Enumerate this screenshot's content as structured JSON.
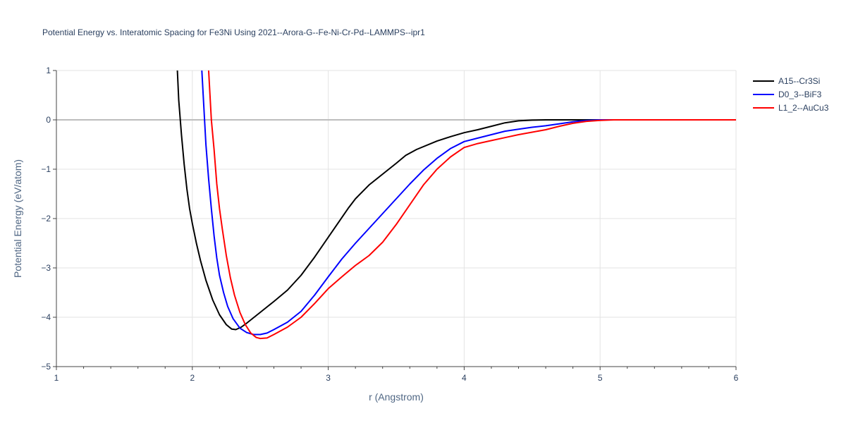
{
  "chart_data": {
    "type": "line",
    "title": "Potential Energy vs. Interatomic Spacing for Fe3Ni Using 2021--Arora-G--Fe-Ni-Cr-Pd--LAMMPS--ipr1",
    "xlabel": "r (Angstrom)",
    "ylabel": "Potential Energy (eV/atom)",
    "xlim": [
      1,
      6
    ],
    "ylim": [
      -5,
      1
    ],
    "xticks": [
      1,
      2,
      3,
      4,
      5,
      6
    ],
    "yticks": [
      -5,
      -4,
      -3,
      -2,
      -1,
      0,
      1
    ],
    "x_minor_step": 0.2,
    "grid": true,
    "zero_line": true,
    "legend_position": "top-right",
    "series": [
      {
        "name": "A15--Cr3Si",
        "color": "#000000",
        "points": [
          [
            1.89,
            1.0
          ],
          [
            1.9,
            0.4
          ],
          [
            1.92,
            -0.3
          ],
          [
            1.94,
            -0.9
          ],
          [
            1.96,
            -1.4
          ],
          [
            1.98,
            -1.8
          ],
          [
            2.0,
            -2.1
          ],
          [
            2.03,
            -2.5
          ],
          [
            2.06,
            -2.85
          ],
          [
            2.1,
            -3.25
          ],
          [
            2.15,
            -3.65
          ],
          [
            2.2,
            -3.95
          ],
          [
            2.25,
            -4.15
          ],
          [
            2.29,
            -4.24
          ],
          [
            2.32,
            -4.25
          ],
          [
            2.36,
            -4.2
          ],
          [
            2.4,
            -4.12
          ],
          [
            2.5,
            -3.9
          ],
          [
            2.6,
            -3.68
          ],
          [
            2.7,
            -3.45
          ],
          [
            2.8,
            -3.15
          ],
          [
            2.9,
            -2.78
          ],
          [
            3.0,
            -2.38
          ],
          [
            3.1,
            -1.98
          ],
          [
            3.15,
            -1.78
          ],
          [
            3.2,
            -1.6
          ],
          [
            3.3,
            -1.32
          ],
          [
            3.4,
            -1.1
          ],
          [
            3.5,
            -0.88
          ],
          [
            3.57,
            -0.72
          ],
          [
            3.65,
            -0.6
          ],
          [
            3.8,
            -0.43
          ],
          [
            3.9,
            -0.34
          ],
          [
            4.0,
            -0.26
          ],
          [
            4.1,
            -0.2
          ],
          [
            4.2,
            -0.13
          ],
          [
            4.3,
            -0.06
          ],
          [
            4.4,
            -0.02
          ],
          [
            4.5,
            -0.005
          ],
          [
            4.6,
            0.0
          ],
          [
            6.0,
            0.0
          ]
        ]
      },
      {
        "name": "D0_3--BiF3",
        "color": "#0000ff",
        "points": [
          [
            2.07,
            1.0
          ],
          [
            2.08,
            0.5
          ],
          [
            2.09,
            0.0
          ],
          [
            2.1,
            -0.5
          ],
          [
            2.12,
            -1.2
          ],
          [
            2.14,
            -1.8
          ],
          [
            2.16,
            -2.35
          ],
          [
            2.18,
            -2.8
          ],
          [
            2.2,
            -3.15
          ],
          [
            2.23,
            -3.5
          ],
          [
            2.26,
            -3.78
          ],
          [
            2.3,
            -4.03
          ],
          [
            2.35,
            -4.22
          ],
          [
            2.4,
            -4.31
          ],
          [
            2.45,
            -4.35
          ],
          [
            2.5,
            -4.35
          ],
          [
            2.55,
            -4.32
          ],
          [
            2.6,
            -4.25
          ],
          [
            2.7,
            -4.1
          ],
          [
            2.8,
            -3.88
          ],
          [
            2.9,
            -3.55
          ],
          [
            3.0,
            -3.18
          ],
          [
            3.1,
            -2.82
          ],
          [
            3.2,
            -2.5
          ],
          [
            3.3,
            -2.2
          ],
          [
            3.4,
            -1.9
          ],
          [
            3.5,
            -1.6
          ],
          [
            3.6,
            -1.3
          ],
          [
            3.7,
            -1.02
          ],
          [
            3.8,
            -0.78
          ],
          [
            3.9,
            -0.58
          ],
          [
            4.0,
            -0.44
          ],
          [
            4.1,
            -0.37
          ],
          [
            4.2,
            -0.3
          ],
          [
            4.3,
            -0.23
          ],
          [
            4.4,
            -0.19
          ],
          [
            4.5,
            -0.15
          ],
          [
            4.6,
            -0.12
          ],
          [
            4.7,
            -0.08
          ],
          [
            4.8,
            -0.04
          ],
          [
            4.9,
            -0.015
          ],
          [
            5.0,
            0.0
          ],
          [
            6.0,
            0.0
          ]
        ]
      },
      {
        "name": "L1_2--AuCu3",
        "color": "#ff0000",
        "points": [
          [
            2.12,
            1.0
          ],
          [
            2.13,
            0.5
          ],
          [
            2.14,
            0.0
          ],
          [
            2.16,
            -0.6
          ],
          [
            2.18,
            -1.3
          ],
          [
            2.2,
            -1.8
          ],
          [
            2.22,
            -2.2
          ],
          [
            2.25,
            -2.75
          ],
          [
            2.28,
            -3.2
          ],
          [
            2.31,
            -3.55
          ],
          [
            2.35,
            -3.9
          ],
          [
            2.39,
            -4.15
          ],
          [
            2.43,
            -4.32
          ],
          [
            2.47,
            -4.41
          ],
          [
            2.5,
            -4.43
          ],
          [
            2.55,
            -4.42
          ],
          [
            2.6,
            -4.35
          ],
          [
            2.7,
            -4.2
          ],
          [
            2.8,
            -4.0
          ],
          [
            2.9,
            -3.72
          ],
          [
            3.0,
            -3.42
          ],
          [
            3.1,
            -3.18
          ],
          [
            3.2,
            -2.95
          ],
          [
            3.3,
            -2.75
          ],
          [
            3.4,
            -2.48
          ],
          [
            3.5,
            -2.12
          ],
          [
            3.6,
            -1.72
          ],
          [
            3.7,
            -1.32
          ],
          [
            3.8,
            -1.0
          ],
          [
            3.9,
            -0.75
          ],
          [
            4.0,
            -0.56
          ],
          [
            4.1,
            -0.48
          ],
          [
            4.2,
            -0.42
          ],
          [
            4.3,
            -0.36
          ],
          [
            4.4,
            -0.3
          ],
          [
            4.5,
            -0.25
          ],
          [
            4.6,
            -0.2
          ],
          [
            4.7,
            -0.13
          ],
          [
            4.8,
            -0.07
          ],
          [
            4.9,
            -0.03
          ],
          [
            5.0,
            -0.01
          ],
          [
            5.1,
            0.0
          ],
          [
            6.0,
            0.0
          ]
        ]
      }
    ]
  }
}
